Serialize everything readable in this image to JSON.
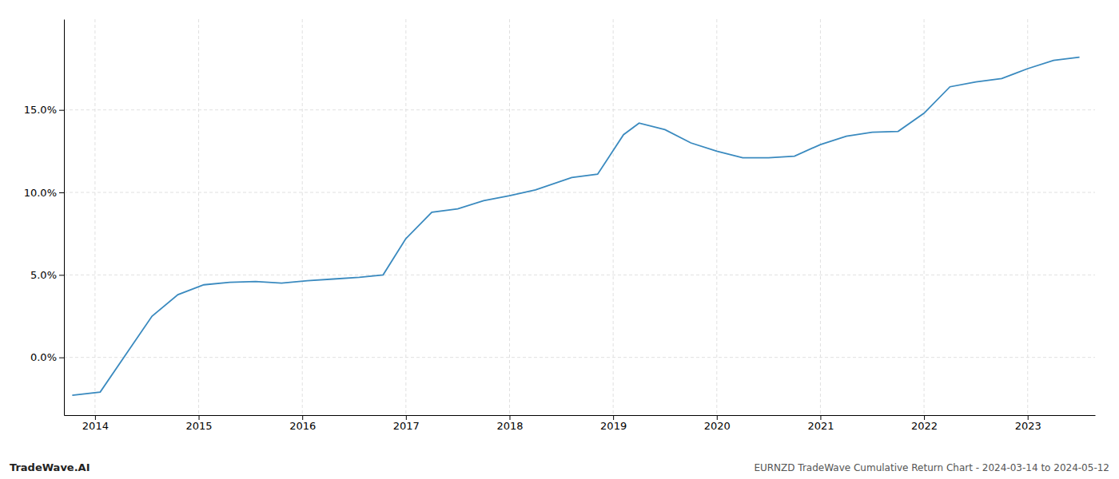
{
  "chart_data": {
    "type": "line",
    "x": [
      2013.78,
      2014.05,
      2014.3,
      2014.55,
      2014.8,
      2015.05,
      2015.3,
      2015.55,
      2015.8,
      2016.05,
      2016.3,
      2016.55,
      2016.78,
      2017.0,
      2017.25,
      2017.5,
      2017.75,
      2018.0,
      2018.25,
      2018.6,
      2018.85,
      2019.1,
      2019.25,
      2019.5,
      2019.75,
      2020.0,
      2020.25,
      2020.5,
      2020.75,
      2021.0,
      2021.25,
      2021.5,
      2021.75,
      2022.0,
      2022.25,
      2022.5,
      2022.75,
      2023.0,
      2023.25,
      2023.5
    ],
    "values": [
      -2.3,
      -2.1,
      0.2,
      2.5,
      3.8,
      4.4,
      4.55,
      4.6,
      4.5,
      4.65,
      4.75,
      4.85,
      5.0,
      7.2,
      8.8,
      9.0,
      9.5,
      9.8,
      10.15,
      10.9,
      11.1,
      13.5,
      14.2,
      13.8,
      13.0,
      12.5,
      12.1,
      12.1,
      12.2,
      12.9,
      13.4,
      13.65,
      13.7,
      14.8,
      16.4,
      16.7,
      16.9,
      17.5,
      18.0,
      18.2
    ],
    "color": "#3a8abf",
    "xlim": [
      2013.7,
      2023.65
    ],
    "xticks": [
      2014,
      2015,
      2016,
      2017,
      2018,
      2019,
      2020,
      2021,
      2022,
      2023
    ],
    "ylim": [
      -3.5,
      20.5
    ],
    "yticks": [
      {
        "value": 0.0,
        "label": "0.0%"
      },
      {
        "value": 5.0,
        "label": "5.0%"
      },
      {
        "value": 10.0,
        "label": "10.0%"
      },
      {
        "value": 15.0,
        "label": "15.0%"
      }
    ],
    "grid": true,
    "annotations": [
      "TradeWave.AI",
      "EURNZD TradeWave Cumulative Return Chart - 2024-03-14 to 2024-05-12"
    ]
  }
}
